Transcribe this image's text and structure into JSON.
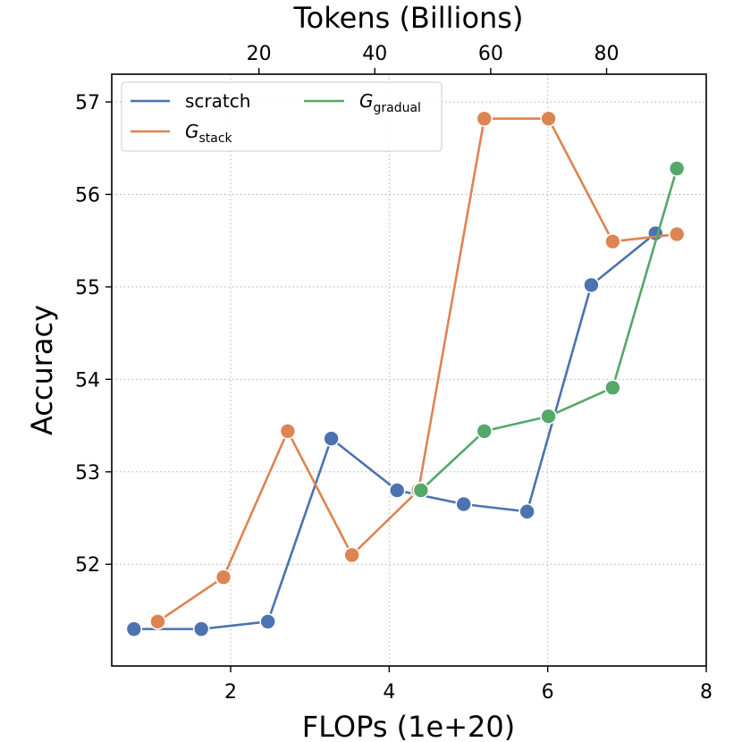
{
  "chart_data": {
    "type": "line",
    "xlabel": "FLOPs (1e+20)",
    "ylabel": "Accuracy",
    "top_xlabel": "Tokens (Billions)",
    "xlim": [
      0.5,
      8
    ],
    "ylim": [
      50.9,
      57.3
    ],
    "top_xlim": [
      -5.4,
      97.2
    ],
    "x_ticks": [
      2,
      4,
      6,
      8
    ],
    "y_ticks": [
      52,
      53,
      54,
      55,
      56,
      57
    ],
    "top_x_ticks": [
      20,
      40,
      60,
      80
    ],
    "grid": true,
    "grid_style": "dotted",
    "legend_position": "top-left",
    "legend_columns": 2,
    "series": [
      {
        "name": "scratch",
        "name_main": "scratch",
        "name_sub": "",
        "color": "#4c72b0",
        "x": [
          0.78,
          1.63,
          2.47,
          3.27,
          4.1,
          4.94,
          5.74,
          6.55,
          7.36
        ],
        "y": [
          51.3,
          51.3,
          51.38,
          53.36,
          52.8,
          52.65,
          52.57,
          55.02,
          55.58
        ]
      },
      {
        "name": "G_stack",
        "name_main": "G",
        "name_sub": "stack",
        "color": "#dd8452",
        "x": [
          1.08,
          1.91,
          2.72,
          3.53,
          4.37,
          5.2,
          6.01,
          6.82,
          7.63
        ],
        "y": [
          51.38,
          51.86,
          53.44,
          52.1,
          52.8,
          56.82,
          56.82,
          55.49,
          55.57
        ]
      },
      {
        "name": "G_gradual",
        "name_main": "G",
        "name_sub": "gradual",
        "color": "#55a868",
        "x": [
          4.4,
          5.2,
          6.01,
          6.82,
          7.63
        ],
        "y": [
          52.8,
          53.44,
          53.6,
          53.91,
          56.28
        ]
      }
    ]
  }
}
